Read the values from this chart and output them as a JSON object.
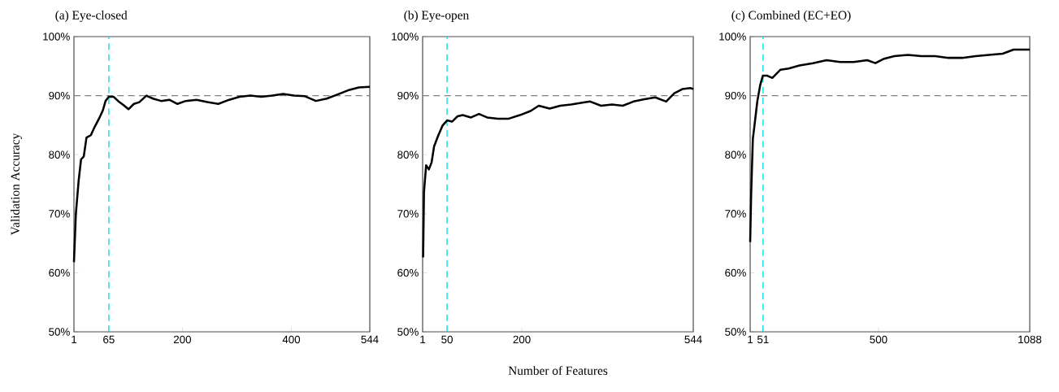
{
  "chart_data": [
    {
      "type": "line",
      "title": "(a) Eye-closed",
      "ylabel": "Validation Accuracy",
      "xlim": [
        1,
        544
      ],
      "ylim": [
        50,
        100
      ],
      "xticks": [
        1,
        65,
        200,
        400,
        544
      ],
      "yticks": [
        {
          "value": 50,
          "label": "50%"
        },
        {
          "value": 60,
          "label": "60%"
        },
        {
          "value": 70,
          "label": "70%"
        },
        {
          "value": 80,
          "label": "80%"
        },
        {
          "value": 90,
          "label": "90%"
        },
        {
          "value": 100,
          "label": "100%"
        }
      ],
      "line_style": "solid",
      "x": [
        1,
        4.5,
        9.5,
        14,
        19,
        24,
        32,
        39,
        47,
        54,
        59,
        65,
        74,
        82,
        92,
        101,
        111,
        121,
        134,
        146,
        161,
        176,
        191,
        206,
        226,
        246,
        266,
        286,
        305,
        325,
        345,
        365,
        385,
        405,
        425,
        445,
        465,
        485,
        504,
        524,
        544
      ],
      "series": [
        {
          "color": "#000000",
          "values": [
            61.8,
            70,
            75.5,
            79.2,
            79.7,
            82.9,
            83.3,
            84.7,
            86.1,
            87.5,
            89.1,
            89.8,
            89.8,
            89.1,
            88.4,
            87.7,
            88.6,
            88.9,
            90,
            89.5,
            89.1,
            89.3,
            88.6,
            89.1,
            89.3,
            88.9,
            88.6,
            89.3,
            89.8,
            90,
            89.8,
            90,
            90.3,
            90,
            89.9,
            89.1,
            89.5,
            90.2,
            90.9,
            91.4,
            91.5
          ]
        }
      ],
      "ref_lines": [
        {
          "axis": "y",
          "value": 90,
          "color": "#808080",
          "line_style": "dashed"
        },
        {
          "axis": "x",
          "value": 65,
          "color": "#00e0e0",
          "line_style": "dashed"
        }
      ]
    },
    {
      "type": "line",
      "title": "(b) Eye-open",
      "xlabel": "Number of Features",
      "xlim": [
        1,
        544
      ],
      "ylim": [
        50,
        100
      ],
      "xticks": [
        1,
        50,
        200,
        544
      ],
      "yticks": [
        {
          "value": 50,
          "label": "50%"
        },
        {
          "value": 60,
          "label": "60%"
        },
        {
          "value": 70,
          "label": "70%"
        },
        {
          "value": 80,
          "label": "80%"
        },
        {
          "value": 90,
          "label": "90%"
        },
        {
          "value": 100,
          "label": "100%"
        }
      ],
      "line_style": "solid",
      "x": [
        2,
        3.7,
        8,
        13.5,
        19,
        24,
        32.6,
        40.7,
        50,
        60,
        71,
        81.5,
        98,
        114,
        130.5,
        152,
        174,
        196,
        217.5,
        234,
        256,
        277,
        299,
        321,
        337,
        359,
        381,
        402.5,
        424,
        446,
        467.8,
        489.6,
        506,
        522,
        538.5,
        544
      ],
      "series": [
        {
          "color": "#000000",
          "values": [
            62.6,
            73.6,
            78.2,
            77.5,
            78.7,
            81.4,
            83.3,
            84.9,
            85.8,
            85.6,
            86.5,
            86.7,
            86.3,
            86.9,
            86.3,
            86.1,
            86.1,
            86.7,
            87.4,
            88.3,
            87.8,
            88.3,
            88.5,
            88.8,
            89,
            88.3,
            88.5,
            88.3,
            89,
            89.4,
            89.7,
            89,
            90.4,
            91.1,
            91.3,
            91.1
          ]
        }
      ],
      "ref_lines": [
        {
          "axis": "y",
          "value": 90,
          "color": "#808080",
          "line_style": "dashed"
        },
        {
          "axis": "x",
          "value": 50,
          "color": "#00e0e0",
          "line_style": "dashed"
        }
      ]
    },
    {
      "type": "line",
      "title": "(c) Combined (EC+EO)",
      "xlim": [
        1,
        1088
      ],
      "ylim": [
        50,
        100
      ],
      "xticks": [
        1,
        51,
        500,
        1088
      ],
      "yticks": [
        {
          "value": 50,
          "label": "50%"
        },
        {
          "value": 60,
          "label": "60%"
        },
        {
          "value": 70,
          "label": "70%"
        },
        {
          "value": 80,
          "label": "80%"
        },
        {
          "value": 90,
          "label": "90%"
        },
        {
          "value": 100,
          "label": "100%"
        }
      ],
      "line_style": "solid",
      "x": [
        1,
        5,
        11.5,
        19,
        29,
        40,
        50.5,
        66,
        87,
        119,
        150.6,
        192.8,
        245,
        298,
        351,
        403.5,
        456,
        487.7,
        519,
        561.6,
        614,
        667,
        719.7,
        772,
        825,
        878,
        930,
        983,
        1025,
        1056,
        1088
      ],
      "series": [
        {
          "color": "#000000",
          "values": [
            65.2,
            73.5,
            82.7,
            85.4,
            89.1,
            91.8,
            93.4,
            93.4,
            93,
            94.4,
            94.6,
            95.1,
            95.5,
            96,
            95.7,
            95.7,
            96,
            95.5,
            96.2,
            96.7,
            96.9,
            96.7,
            96.7,
            96.4,
            96.4,
            96.7,
            96.9,
            97.1,
            97.8,
            97.8,
            97.8
          ]
        }
      ],
      "ref_lines": [
        {
          "axis": "y",
          "value": 90,
          "color": "#808080",
          "line_style": "dashed"
        },
        {
          "axis": "x",
          "value": 51,
          "color": "#00e0e0",
          "line_style": "dashed"
        }
      ]
    }
  ]
}
